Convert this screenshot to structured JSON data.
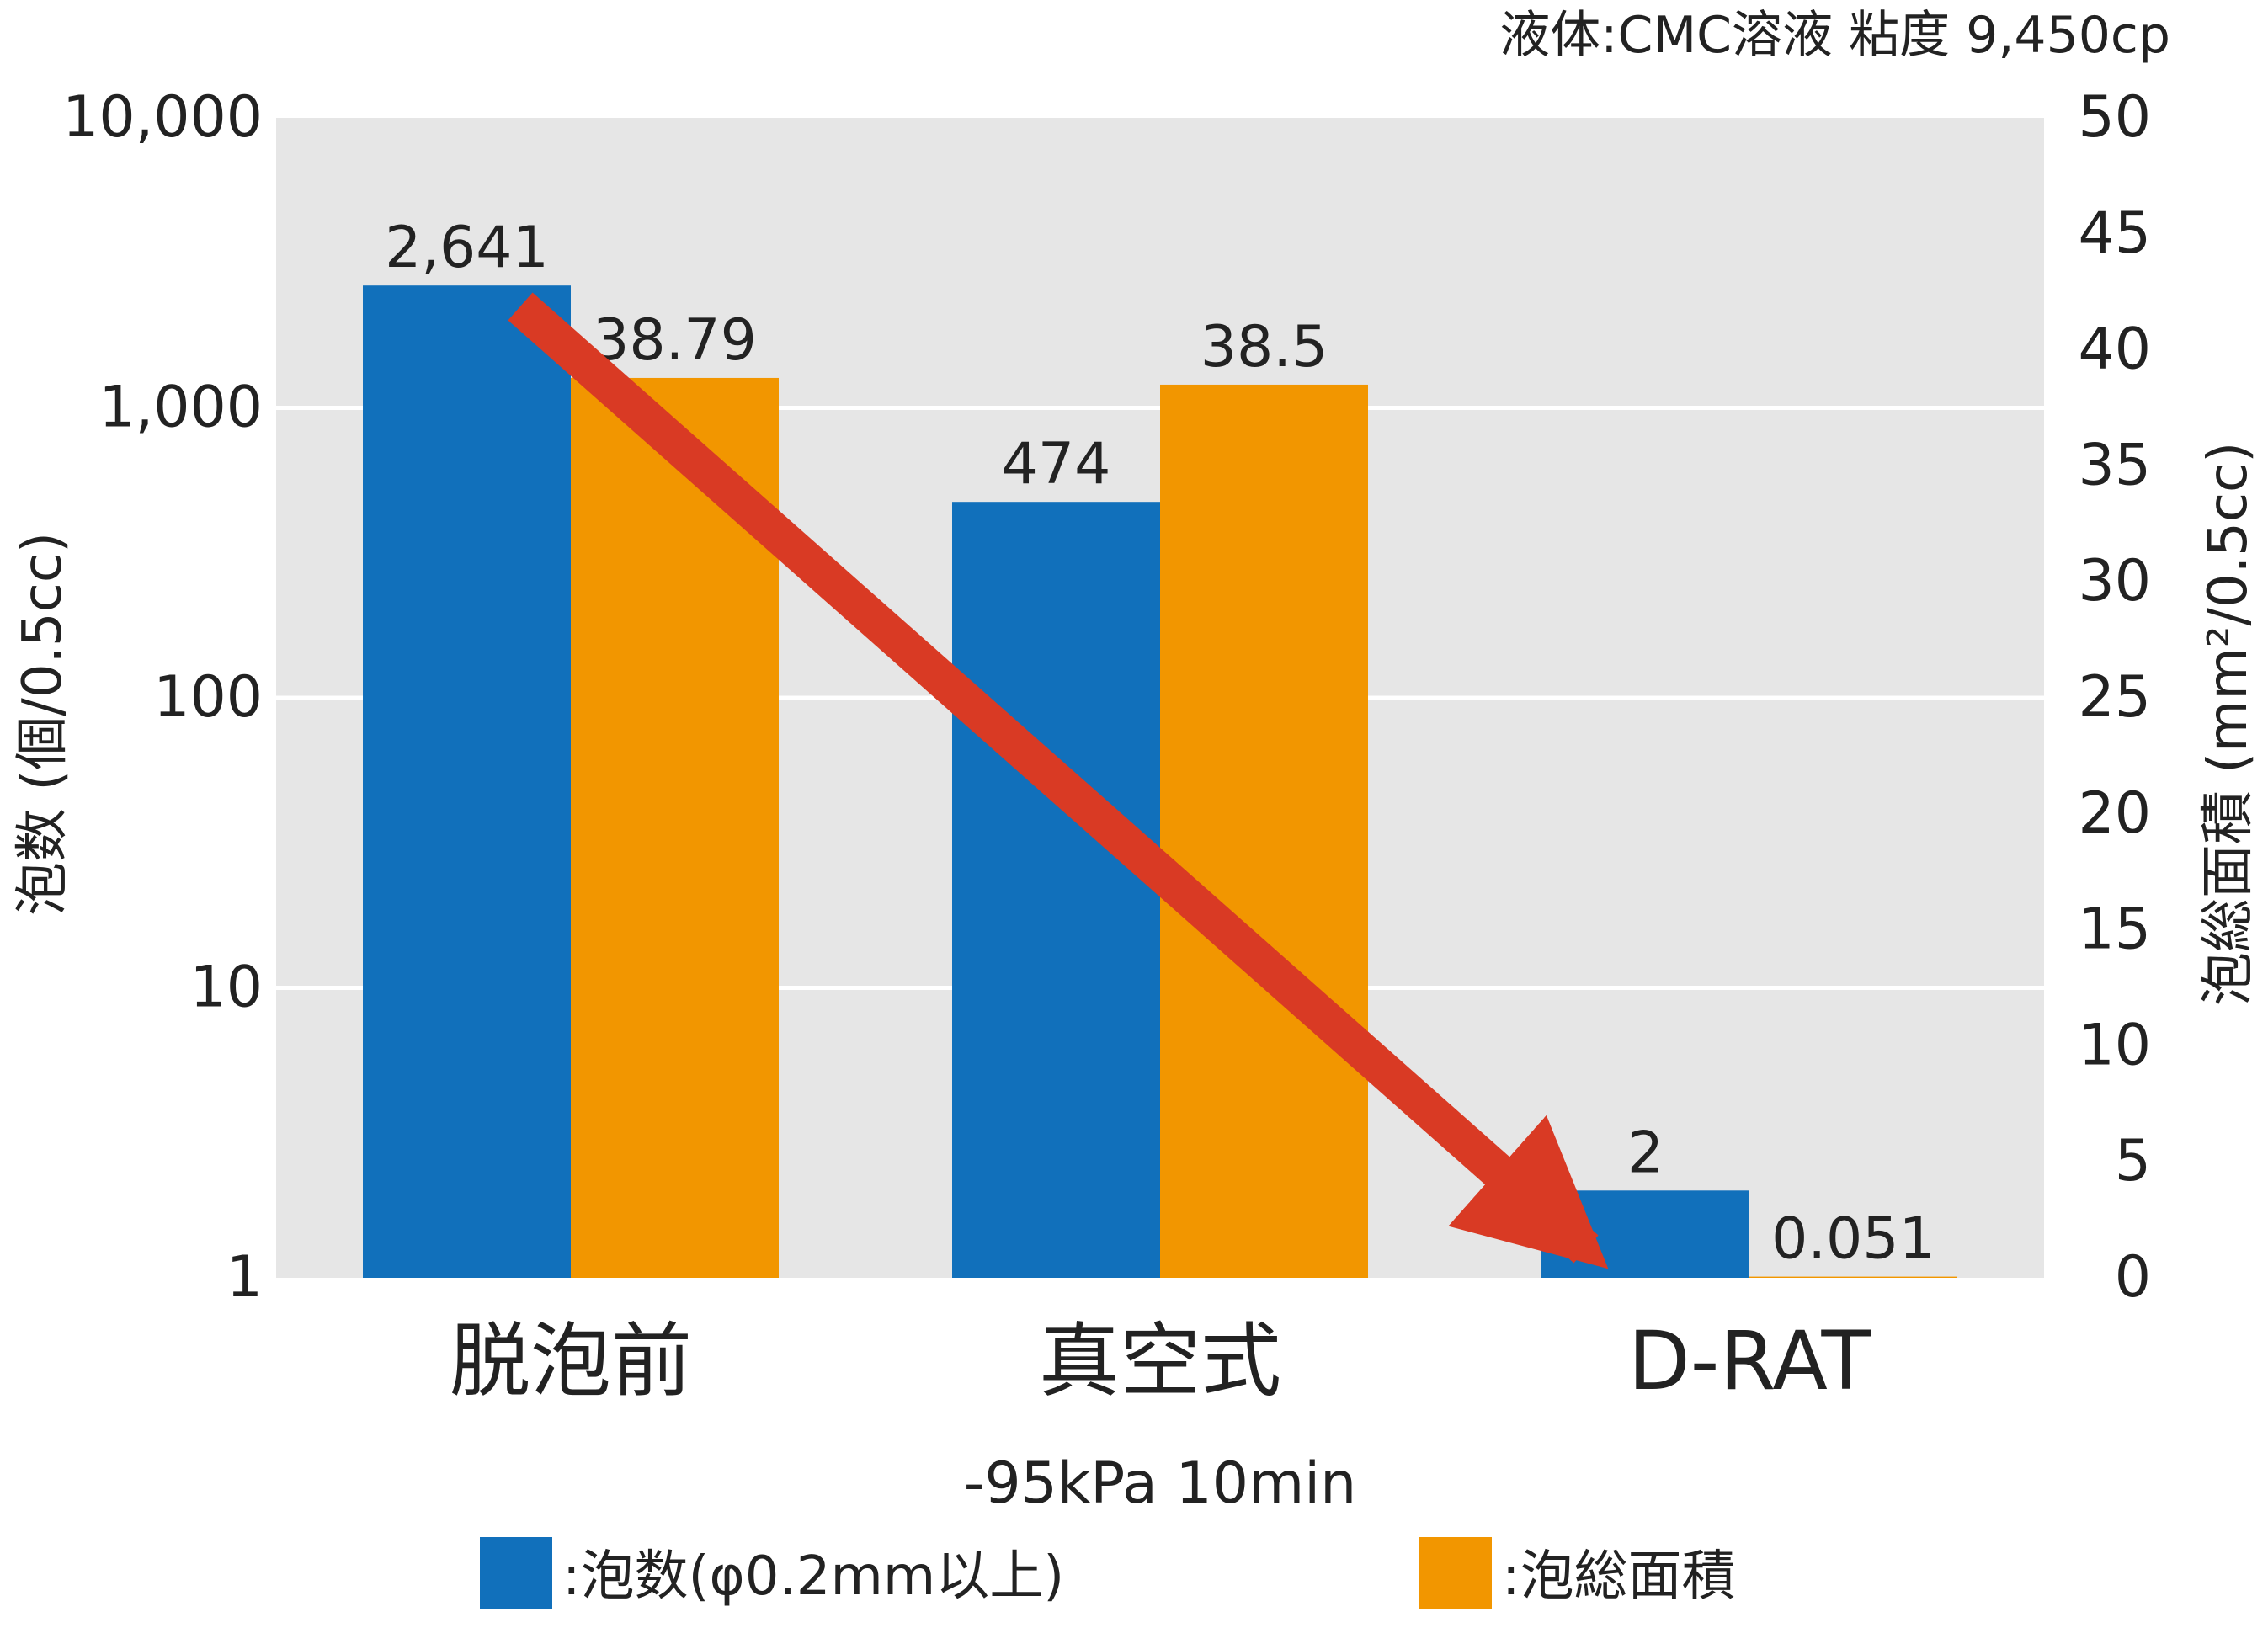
{
  "chart_data": {
    "type": "bar",
    "note": "液体:CMC溶液 粘度 9,450cp",
    "categories": [
      "脱泡前",
      "真空式",
      "D-RAT"
    ],
    "category_sublabels": [
      "",
      "-95kPa 10min",
      ""
    ],
    "ylabel_left": "泡数 (個/0.5cc)",
    "ylabel_right": "泡総面積 (mm²/0.5cc)",
    "y_left": {
      "scale": "log",
      "range": [
        1,
        10000
      ],
      "ticks": [
        1,
        10,
        100,
        1000,
        10000
      ],
      "tick_labels": [
        "1",
        "10",
        "100",
        "1,000",
        "10,000"
      ]
    },
    "y_right": {
      "scale": "linear",
      "range": [
        0,
        50
      ],
      "ticks": [
        0,
        5,
        10,
        15,
        20,
        25,
        30,
        35,
        40,
        45,
        50
      ],
      "tick_labels": [
        "0",
        "5",
        "10",
        "15",
        "20",
        "25",
        "30",
        "35",
        "40",
        "45",
        "50"
      ]
    },
    "series": [
      {
        "name": ":泡数(φ0.2mm以上)",
        "axis": "left",
        "color": "#1170bb",
        "values": [
          2641,
          474,
          2
        ],
        "value_labels": [
          "2,641",
          "474",
          "2"
        ]
      },
      {
        "name": ":泡総面積",
        "axis": "right",
        "color": "#f29600",
        "values": [
          38.79,
          38.5,
          0.051
        ],
        "value_labels": [
          "38.79",
          "38.5",
          "0.051"
        ]
      }
    ],
    "grid": true,
    "plot_background": "#e6e6e6",
    "legend_placement": "bottom",
    "arrow_color": "#d93a24"
  }
}
